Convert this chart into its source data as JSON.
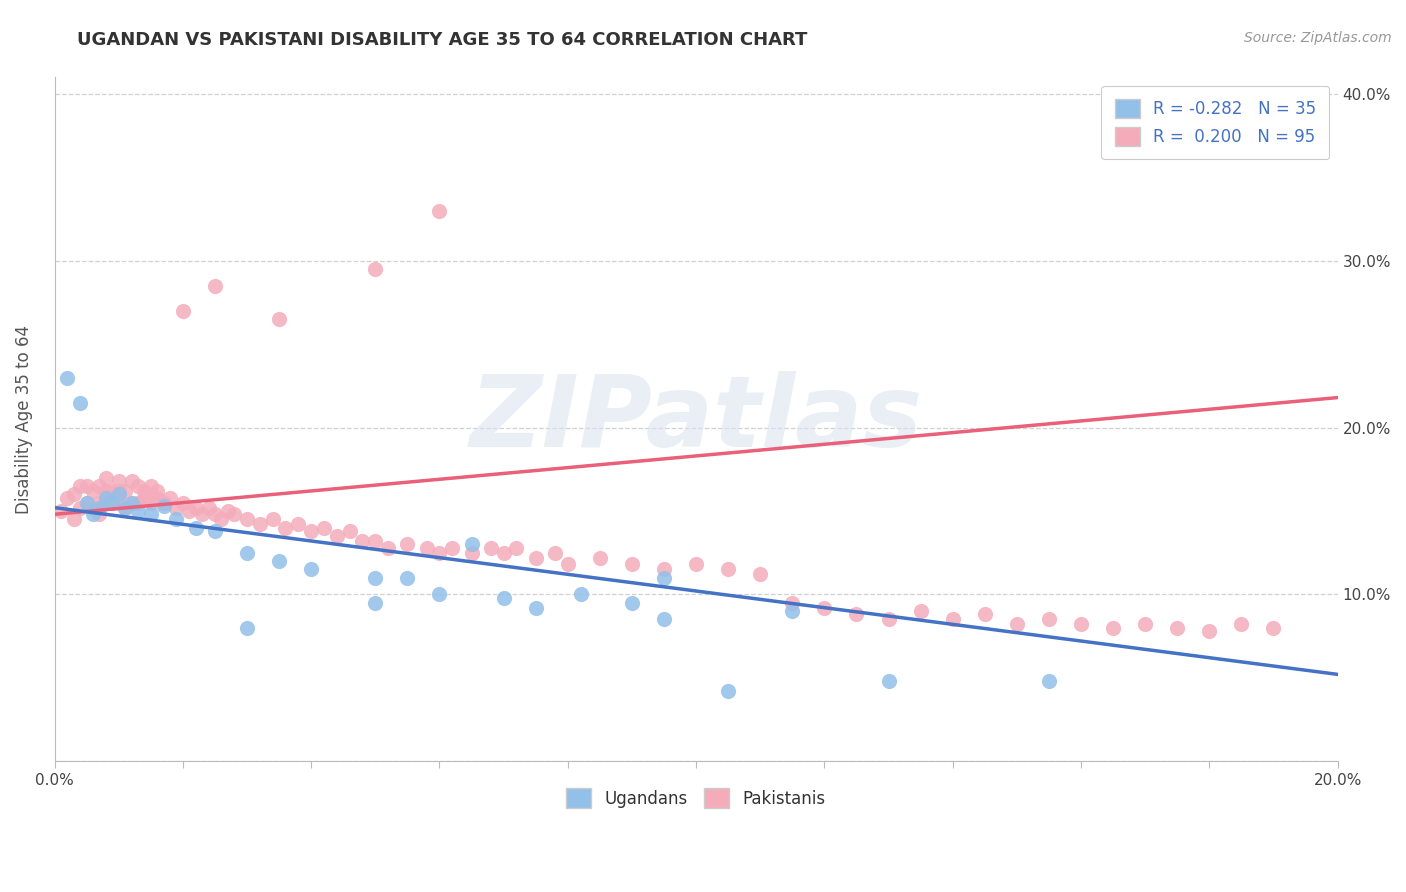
{
  "title": "UGANDAN VS PAKISTANI DISABILITY AGE 35 TO 64 CORRELATION CHART",
  "source": "Source: ZipAtlas.com",
  "ylabel": "Disability Age 35 to 64",
  "ugandan_R": -0.282,
  "ugandan_N": 35,
  "pakistani_R": 0.2,
  "pakistani_N": 95,
  "ugandan_color": "#92C0E8",
  "ugandan_line_color": "#4472C4",
  "pakistani_color": "#F4ACBB",
  "pakistani_line_color": "#E8607A",
  "legend_text_color": "#4472C4",
  "background_color": "#FFFFFF",
  "grid_color": "#CCCCCC",
  "watermark": "ZIPatlas",
  "xlim": [
    0.0,
    0.2
  ],
  "ylim": [
    0.0,
    0.41
  ],
  "ytick_vals": [
    0.0,
    0.1,
    0.2,
    0.3,
    0.4
  ],
  "ytick_labels": [
    "",
    "10.0%",
    "20.0%",
    "30.0%",
    "40.0%"
  ],
  "ug_line_x0": 0.0,
  "ug_line_y0": 0.152,
  "ug_line_x1": 0.2,
  "ug_line_y1": 0.052,
  "pk_line_x0": 0.0,
  "pk_line_y0": 0.148,
  "pk_line_x1": 0.2,
  "pk_line_y1": 0.218,
  "ug_x": [
    0.002,
    0.004,
    0.005,
    0.006,
    0.007,
    0.008,
    0.009,
    0.01,
    0.011,
    0.012,
    0.013,
    0.015,
    0.017,
    0.019,
    0.022,
    0.025,
    0.03,
    0.035,
    0.04,
    0.05,
    0.055,
    0.06,
    0.07,
    0.075,
    0.082,
    0.09,
    0.095,
    0.105,
    0.115,
    0.13,
    0.05,
    0.065,
    0.095,
    0.155,
    0.03
  ],
  "ug_y": [
    0.23,
    0.215,
    0.155,
    0.148,
    0.152,
    0.158,
    0.155,
    0.16,
    0.152,
    0.155,
    0.15,
    0.148,
    0.153,
    0.145,
    0.14,
    0.138,
    0.125,
    0.12,
    0.115,
    0.11,
    0.11,
    0.1,
    0.098,
    0.092,
    0.1,
    0.095,
    0.085,
    0.042,
    0.09,
    0.048,
    0.095,
    0.13,
    0.11,
    0.048,
    0.08
  ],
  "pk_x": [
    0.001,
    0.002,
    0.003,
    0.003,
    0.004,
    0.004,
    0.005,
    0.005,
    0.006,
    0.006,
    0.007,
    0.007,
    0.007,
    0.008,
    0.008,
    0.008,
    0.009,
    0.009,
    0.01,
    0.01,
    0.01,
    0.011,
    0.011,
    0.012,
    0.012,
    0.013,
    0.013,
    0.014,
    0.014,
    0.015,
    0.015,
    0.016,
    0.016,
    0.017,
    0.018,
    0.019,
    0.02,
    0.021,
    0.022,
    0.023,
    0.024,
    0.025,
    0.026,
    0.027,
    0.028,
    0.03,
    0.032,
    0.034,
    0.036,
    0.038,
    0.04,
    0.042,
    0.044,
    0.046,
    0.048,
    0.05,
    0.052,
    0.055,
    0.058,
    0.06,
    0.062,
    0.065,
    0.068,
    0.07,
    0.072,
    0.075,
    0.078,
    0.08,
    0.085,
    0.09,
    0.095,
    0.1,
    0.105,
    0.11,
    0.115,
    0.12,
    0.125,
    0.13,
    0.135,
    0.14,
    0.145,
    0.15,
    0.155,
    0.16,
    0.165,
    0.17,
    0.175,
    0.18,
    0.185,
    0.19,
    0.02,
    0.025,
    0.035,
    0.05,
    0.06
  ],
  "pk_y": [
    0.15,
    0.158,
    0.145,
    0.16,
    0.152,
    0.165,
    0.155,
    0.165,
    0.152,
    0.162,
    0.148,
    0.155,
    0.165,
    0.155,
    0.162,
    0.17,
    0.155,
    0.162,
    0.155,
    0.162,
    0.168,
    0.152,
    0.162,
    0.155,
    0.168,
    0.155,
    0.165,
    0.158,
    0.162,
    0.155,
    0.165,
    0.158,
    0.162,
    0.155,
    0.158,
    0.152,
    0.155,
    0.15,
    0.152,
    0.148,
    0.152,
    0.148,
    0.145,
    0.15,
    0.148,
    0.145,
    0.142,
    0.145,
    0.14,
    0.142,
    0.138,
    0.14,
    0.135,
    0.138,
    0.132,
    0.132,
    0.128,
    0.13,
    0.128,
    0.125,
    0.128,
    0.125,
    0.128,
    0.125,
    0.128,
    0.122,
    0.125,
    0.118,
    0.122,
    0.118,
    0.115,
    0.118,
    0.115,
    0.112,
    0.095,
    0.092,
    0.088,
    0.085,
    0.09,
    0.085,
    0.088,
    0.082,
    0.085,
    0.082,
    0.08,
    0.082,
    0.08,
    0.078,
    0.082,
    0.08,
    0.27,
    0.285,
    0.265,
    0.295,
    0.33
  ]
}
